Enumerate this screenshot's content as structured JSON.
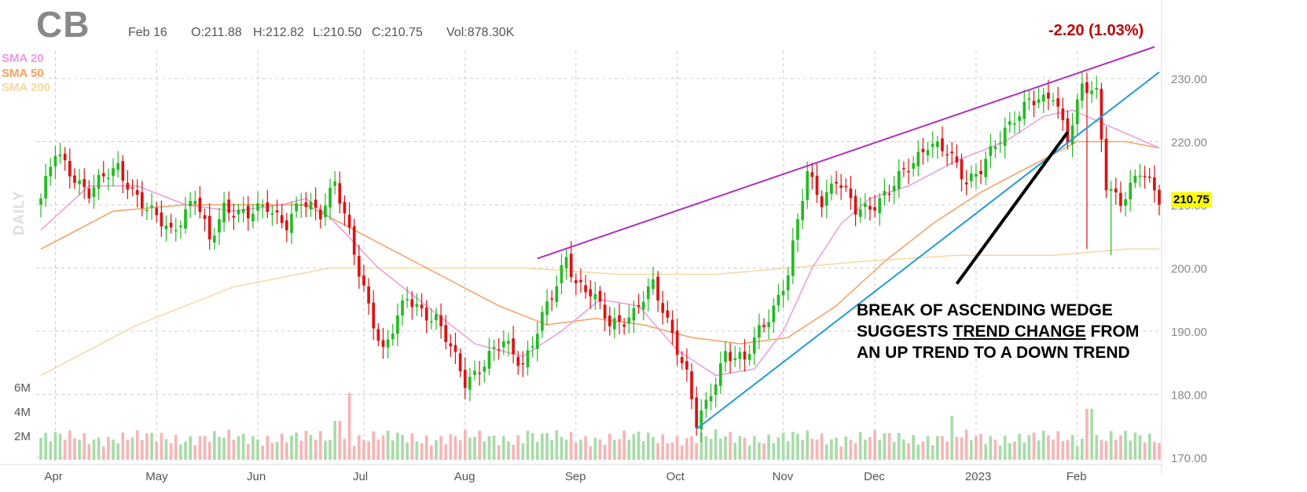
{
  "header": {
    "ticker": "CB",
    "date": "Feb 16",
    "open": "O:211.88",
    "high": "H:212.82",
    "low": "L:210.50",
    "close": "C:210.75",
    "volume": "Vol:878.30K",
    "change": "-2.20 (1.03%)"
  },
  "legend": {
    "sma20": "SMA 20",
    "sma50": "SMA 50",
    "sma200": "SMA 200",
    "period_label": "DAILY"
  },
  "annotation": {
    "line1": "BREAK OF ASCENDING WEDGE",
    "line2_pre": "SUGGESTS ",
    "line2_underlined": "TREND CHANGE",
    "line2_post": " FROM",
    "line3": "AN UP TREND TO A DOWN TREND"
  },
  "last_price": "210.75",
  "colors": {
    "up": "#22bb22",
    "down": "#dd1111",
    "sma20": "#ee99dd",
    "sma50": "#f5a060",
    "sma200": "#f5d8a0",
    "wedge_upper": "#b030c0",
    "wedge_lower": "#2299dd",
    "vol_up": "#a8dca8",
    "vol_down": "#f7b5b5"
  },
  "chart_data": {
    "type": "candlestick",
    "ylim": [
      170,
      235
    ],
    "y_ticks": [
      "170.00",
      "180.00",
      "190.00",
      "200.00",
      "210.00",
      "220.00",
      "230.00"
    ],
    "x_labels": [
      "Apr",
      "May",
      "Jun",
      "Jul",
      "Aug",
      "Sep",
      "Oct",
      "Nov",
      "Dec",
      "2023",
      "Feb"
    ],
    "volume_ticks": [
      "2M",
      "4M",
      "6M"
    ],
    "volume_ylim": [
      0,
      7
    ],
    "anchors": [
      {
        "t": 0,
        "p": 211
      },
      {
        "t": 3,
        "p": 218
      },
      {
        "t": 10,
        "p": 212
      },
      {
        "t": 16,
        "p": 216
      },
      {
        "t": 22,
        "p": 209
      },
      {
        "t": 27,
        "p": 206
      },
      {
        "t": 32,
        "p": 211
      },
      {
        "t": 35,
        "p": 204
      },
      {
        "t": 38,
        "p": 210
      },
      {
        "t": 43,
        "p": 208
      },
      {
        "t": 47,
        "p": 210
      },
      {
        "t": 51,
        "p": 207
      },
      {
        "t": 54,
        "p": 210
      },
      {
        "t": 58,
        "p": 209
      },
      {
        "t": 61,
        "p": 214
      },
      {
        "t": 66,
        "p": 199
      },
      {
        "t": 71,
        "p": 187
      },
      {
        "t": 76,
        "p": 195
      },
      {
        "t": 82,
        "p": 192
      },
      {
        "t": 88,
        "p": 182
      },
      {
        "t": 93,
        "p": 186
      },
      {
        "t": 96,
        "p": 188
      },
      {
        "t": 100,
        "p": 185
      },
      {
        "t": 104,
        "p": 192
      },
      {
        "t": 107,
        "p": 197
      },
      {
        "t": 109,
        "p": 202
      },
      {
        "t": 111,
        "p": 198
      },
      {
        "t": 114,
        "p": 196
      },
      {
        "t": 118,
        "p": 191
      },
      {
        "t": 123,
        "p": 193
      },
      {
        "t": 127,
        "p": 197
      },
      {
        "t": 131,
        "p": 190
      },
      {
        "t": 134,
        "p": 183
      },
      {
        "t": 136,
        "p": 175
      },
      {
        "t": 138,
        "p": 178
      },
      {
        "t": 142,
        "p": 187
      },
      {
        "t": 146,
        "p": 185
      },
      {
        "t": 149,
        "p": 190
      },
      {
        "t": 152,
        "p": 194
      },
      {
        "t": 155,
        "p": 199
      },
      {
        "t": 157,
        "p": 207
      },
      {
        "t": 159,
        "p": 215
      },
      {
        "t": 162,
        "p": 211
      },
      {
        "t": 165,
        "p": 214
      },
      {
        "t": 169,
        "p": 209
      },
      {
        "t": 172,
        "p": 210
      },
      {
        "t": 176,
        "p": 212
      },
      {
        "t": 180,
        "p": 216
      },
      {
        "t": 184,
        "p": 220
      },
      {
        "t": 188,
        "p": 218
      },
      {
        "t": 192,
        "p": 214
      },
      {
        "t": 195,
        "p": 216
      },
      {
        "t": 199,
        "p": 220
      },
      {
        "t": 202,
        "p": 224
      },
      {
        "t": 205,
        "p": 227
      },
      {
        "t": 208,
        "p": 226
      },
      {
        "t": 210,
        "p": 227
      },
      {
        "t": 213,
        "p": 221
      },
      {
        "t": 216,
        "p": 229
      },
      {
        "t": 219,
        "p": 227
      },
      {
        "t": 221,
        "p": 213
      },
      {
        "t": 224,
        "p": 211
      },
      {
        "t": 228,
        "p": 215
      },
      {
        "t": 232,
        "p": 211
      }
    ],
    "date_ticks": [
      {
        "label": "Apr",
        "t": 3
      },
      {
        "label": "May",
        "t": 24
      },
      {
        "label": "Jun",
        "t": 45
      },
      {
        "label": "Jul",
        "t": 67
      },
      {
        "label": "Aug",
        "t": 88
      },
      {
        "label": "Sep",
        "t": 111
      },
      {
        "label": "Oct",
        "t": 132
      },
      {
        "label": "Nov",
        "t": 154
      },
      {
        "label": "Dec",
        "t": 173
      },
      {
        "label": "2023",
        "t": 194
      },
      {
        "label": "Feb",
        "t": 215
      }
    ],
    "n_bars": 233,
    "sma20": [
      [
        0,
        206
      ],
      [
        10,
        213
      ],
      [
        20,
        213
      ],
      [
        30,
        210
      ],
      [
        40,
        209
      ],
      [
        50,
        210
      ],
      [
        55,
        211
      ],
      [
        60,
        208
      ],
      [
        70,
        200
      ],
      [
        80,
        194
      ],
      [
        90,
        188
      ],
      [
        100,
        186
      ],
      [
        108,
        190
      ],
      [
        116,
        195
      ],
      [
        124,
        194
      ],
      [
        132,
        187
      ],
      [
        140,
        183
      ],
      [
        148,
        184
      ],
      [
        154,
        190
      ],
      [
        160,
        200
      ],
      [
        166,
        207
      ],
      [
        172,
        211
      ],
      [
        180,
        213
      ],
      [
        190,
        217
      ],
      [
        200,
        220
      ],
      [
        208,
        224
      ],
      [
        214,
        225
      ],
      [
        220,
        223
      ],
      [
        226,
        221
      ],
      [
        232,
        219
      ]
    ],
    "sma50": [
      [
        0,
        203
      ],
      [
        15,
        209
      ],
      [
        30,
        210
      ],
      [
        45,
        210
      ],
      [
        55,
        210
      ],
      [
        65,
        206
      ],
      [
        80,
        200
      ],
      [
        95,
        194
      ],
      [
        105,
        191
      ],
      [
        115,
        192
      ],
      [
        125,
        191
      ],
      [
        135,
        189
      ],
      [
        145,
        188
      ],
      [
        155,
        189
      ],
      [
        165,
        194
      ],
      [
        175,
        201
      ],
      [
        185,
        207
      ],
      [
        195,
        212
      ],
      [
        205,
        216
      ],
      [
        215,
        220
      ],
      [
        225,
        220
      ],
      [
        232,
        219
      ]
    ],
    "sma200": [
      [
        0,
        183
      ],
      [
        20,
        191
      ],
      [
        40,
        197
      ],
      [
        60,
        200
      ],
      [
        80,
        200
      ],
      [
        100,
        200
      ],
      [
        120,
        199
      ],
      [
        140,
        199
      ],
      [
        155,
        200
      ],
      [
        170,
        201
      ],
      [
        190,
        202
      ],
      [
        210,
        202
      ],
      [
        225,
        203
      ],
      [
        232,
        203
      ]
    ],
    "wedge_upper": [
      [
        103,
        201.5
      ],
      [
        231,
        235
      ]
    ],
    "wedge_lower": [
      [
        136,
        174.5
      ],
      [
        232,
        231
      ]
    ],
    "annotation_arrow": [
      [
        190,
        197.5
      ],
      [
        213,
        221.5
      ]
    ]
  }
}
